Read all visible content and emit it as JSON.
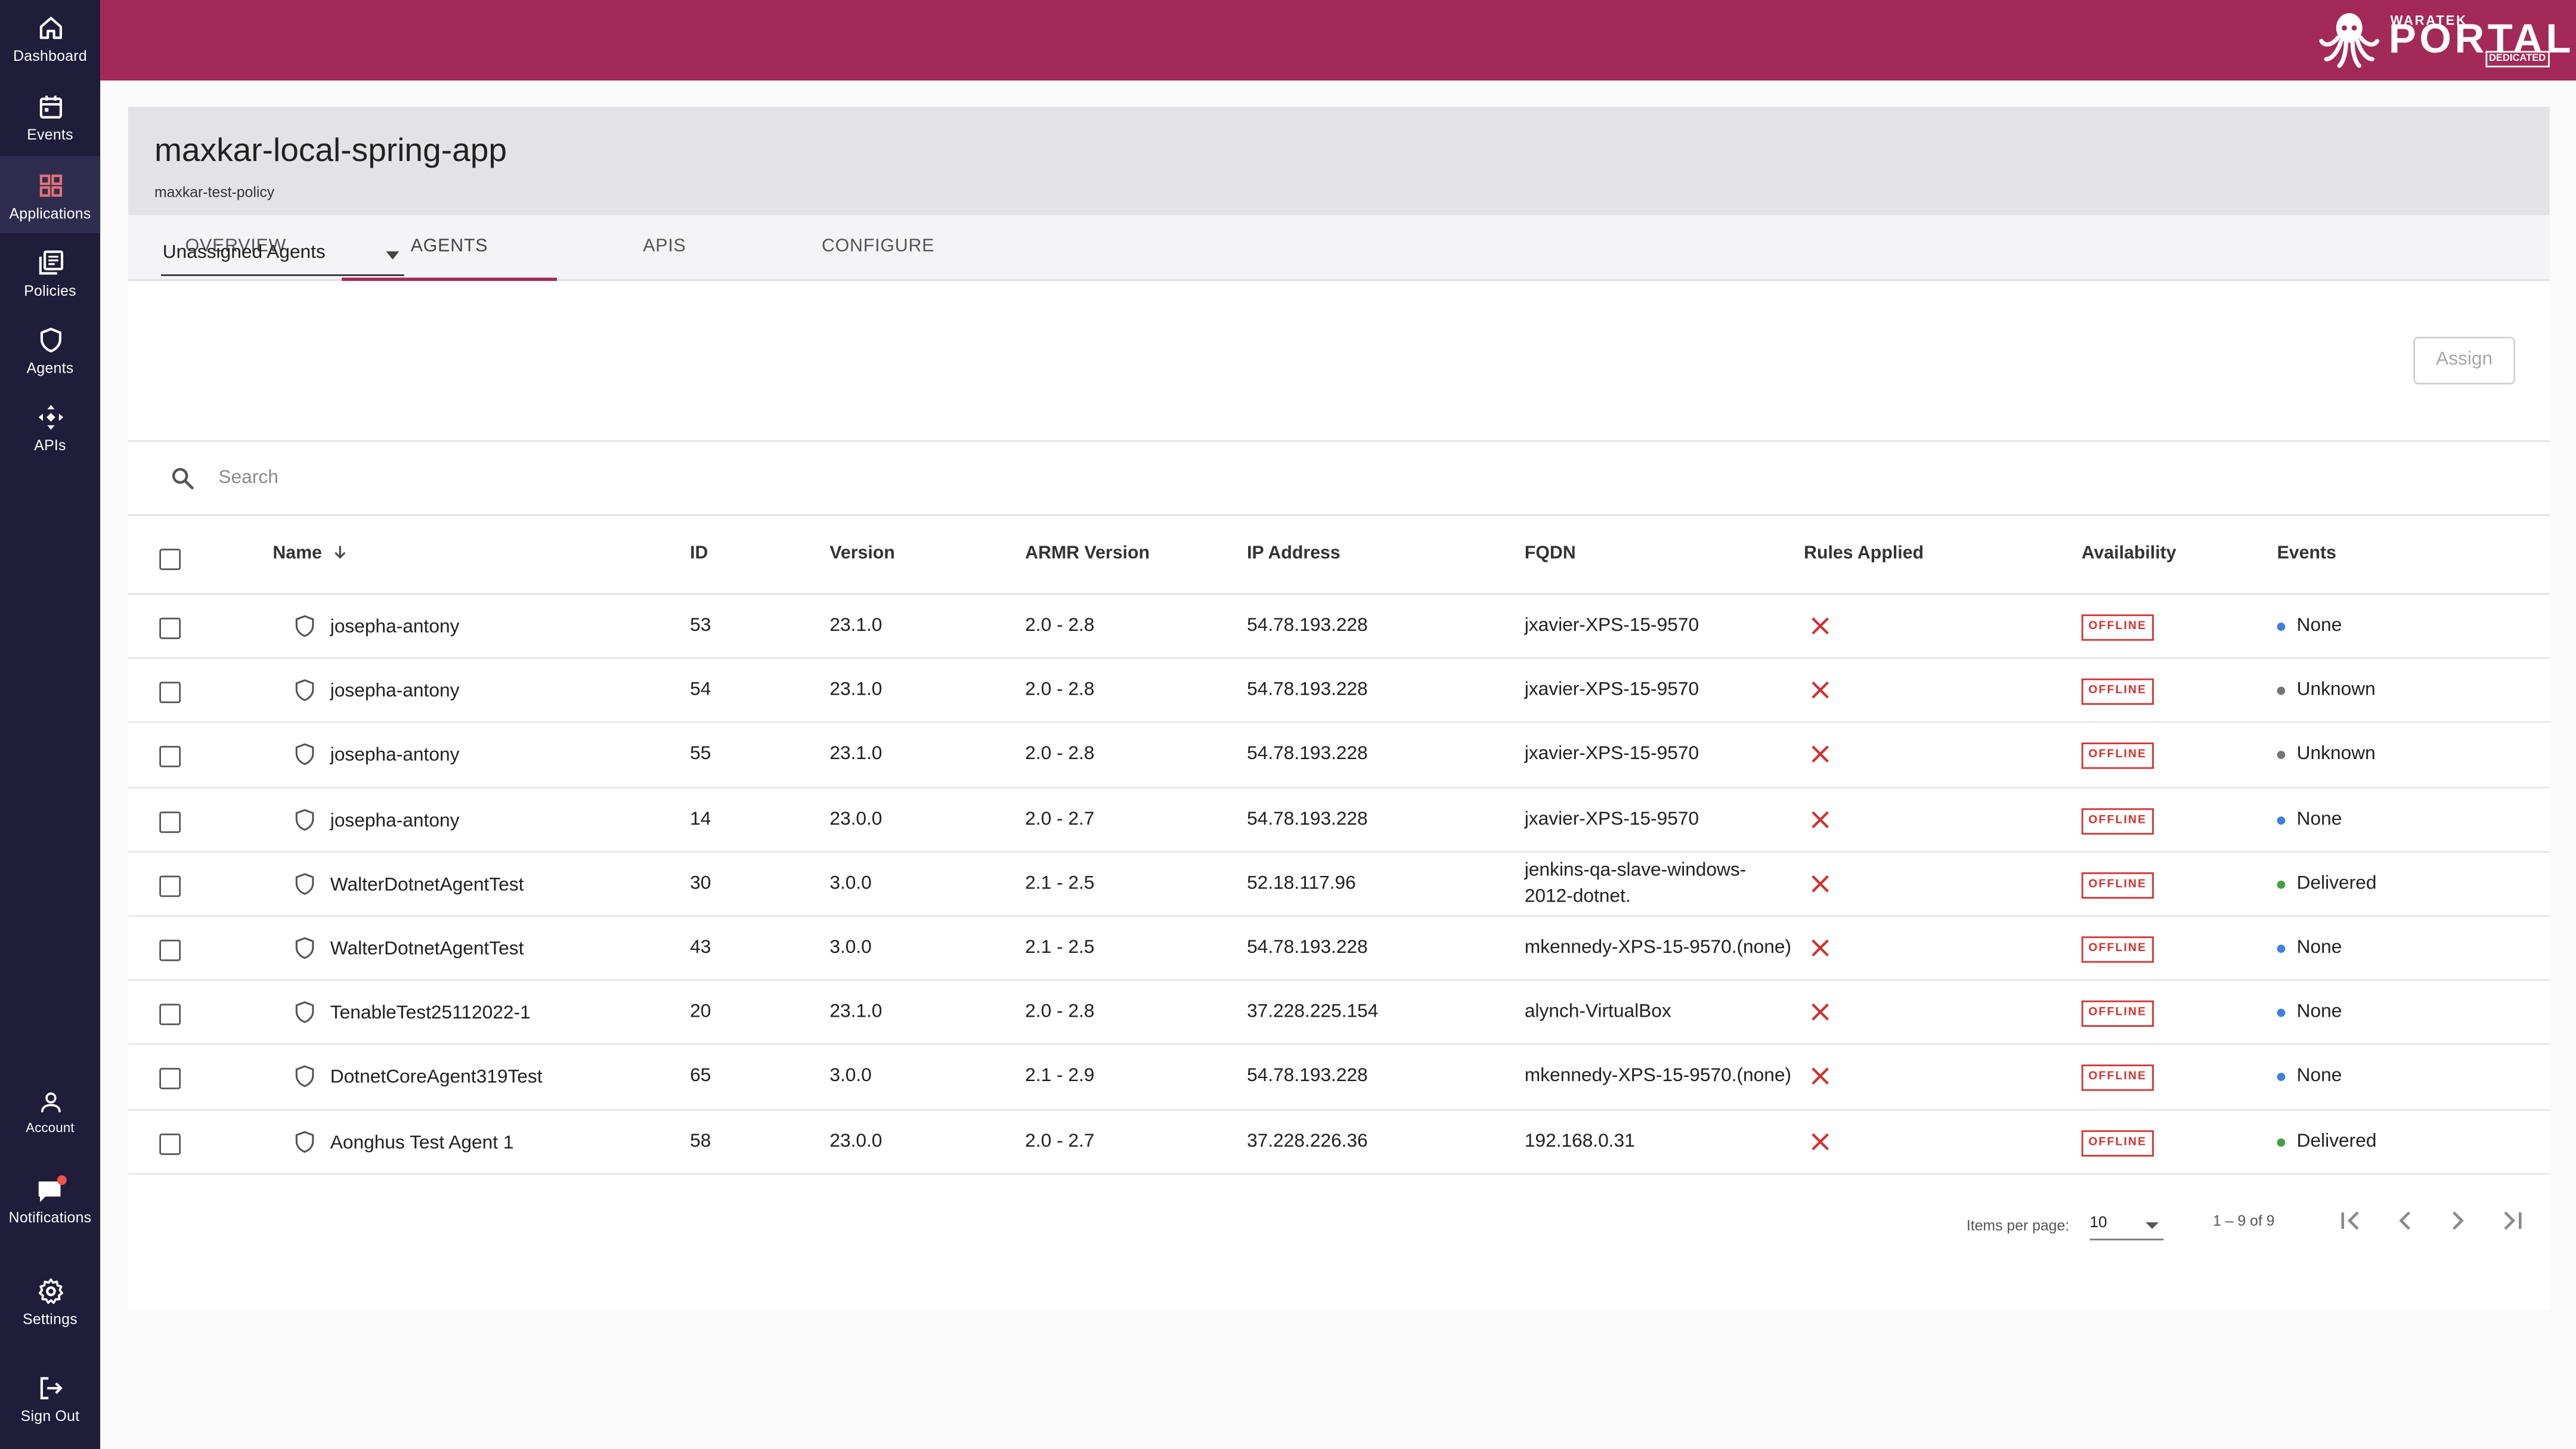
{
  "sidebar": {
    "top_items": [
      {
        "label": "Dashboard",
        "icon": "home-icon"
      },
      {
        "label": "Events",
        "icon": "calendar-icon"
      },
      {
        "label": "Applications",
        "icon": "grid-icon",
        "active": true
      },
      {
        "label": "Policies",
        "icon": "policies-icon"
      },
      {
        "label": "Agents",
        "icon": "shield-icon"
      },
      {
        "label": "APIs",
        "icon": "apis-icon"
      }
    ],
    "bottom_items": [
      {
        "label": "Account",
        "icon": "person-icon"
      },
      {
        "label": "Notifications",
        "icon": "chat-icon"
      },
      {
        "label": "Settings",
        "icon": "gear-icon"
      },
      {
        "label": "Sign Out",
        "icon": "sign-out-icon"
      }
    ]
  },
  "brand": {
    "small": "WARATEK",
    "big": "PORTAL",
    "badge": "DEDICATED",
    "icon": "octopus-logo-icon"
  },
  "colors": {
    "header": "#a32a58",
    "sidebar": "#1f1d3a",
    "offline": "#d32f2f",
    "dot_blue": "#3f7fe0",
    "dot_gray": "#757575",
    "dot_green": "#43a047",
    "applications_icon": "#e57373"
  },
  "page": {
    "title": "maxkar-local-spring-app",
    "subtitle": "maxkar-test-policy"
  },
  "tabs": [
    {
      "label": "OVERVIEW"
    },
    {
      "label": "AGENTS",
      "active": true
    },
    {
      "label": "APIS"
    },
    {
      "label": "CONFIGURE"
    }
  ],
  "filter": {
    "selected": "Unassigned Agents",
    "assign_label": "Assign"
  },
  "search": {
    "placeholder": "Search",
    "value": ""
  },
  "table": {
    "columns": {
      "name": "Name",
      "id": "ID",
      "version": "Version",
      "armr": "ARMR Version",
      "ip": "IP Address",
      "fqdn": "FQDN",
      "rules": "Rules Applied",
      "availability": "Availability",
      "events": "Events"
    },
    "sort": {
      "column": "Name",
      "direction": "descending",
      "icon": "arrow-down-icon"
    },
    "rows": [
      {
        "name": "josepha-antony",
        "id": "53",
        "version": "23.1.0",
        "armr": "2.0 - 2.8",
        "ip": "54.78.193.228",
        "fqdn": "jxavier-XPS-15-9570",
        "fqdn2": "",
        "availability": "OFFLINE",
        "events": "None",
        "dot": "blue"
      },
      {
        "name": "josepha-antony",
        "id": "54",
        "version": "23.1.0",
        "armr": "2.0 - 2.8",
        "ip": "54.78.193.228",
        "fqdn": "jxavier-XPS-15-9570",
        "fqdn2": "",
        "availability": "OFFLINE",
        "events": "Unknown",
        "dot": "gray"
      },
      {
        "name": "josepha-antony",
        "id": "55",
        "version": "23.1.0",
        "armr": "2.0 - 2.8",
        "ip": "54.78.193.228",
        "fqdn": "jxavier-XPS-15-9570",
        "fqdn2": "",
        "availability": "OFFLINE",
        "events": "Unknown",
        "dot": "gray"
      },
      {
        "name": "josepha-antony",
        "id": "14",
        "version": "23.0.0",
        "armr": "2.0 - 2.7",
        "ip": "54.78.193.228",
        "fqdn": "jxavier-XPS-15-9570",
        "fqdn2": "",
        "availability": "OFFLINE",
        "events": "None",
        "dot": "blue"
      },
      {
        "name": "WalterDotnetAgentTest",
        "id": "30",
        "version": "3.0.0",
        "armr": "2.1 - 2.5",
        "ip": "52.18.117.96",
        "fqdn": "jenkins-qa-slave-windows-",
        "fqdn2": "2012-dotnet.",
        "availability": "OFFLINE",
        "events": "Delivered",
        "dot": "green"
      },
      {
        "name": "WalterDotnetAgentTest",
        "id": "43",
        "version": "3.0.0",
        "armr": "2.1 - 2.5",
        "ip": "54.78.193.228",
        "fqdn": "mkennedy-XPS-15-9570.(none)",
        "fqdn2": "",
        "availability": "OFFLINE",
        "events": "None",
        "dot": "blue"
      },
      {
        "name": "TenableTest25112022-1",
        "id": "20",
        "version": "23.1.0",
        "armr": "2.0 - 2.8",
        "ip": "37.228.225.154",
        "fqdn": "alynch-VirtualBox",
        "fqdn2": "",
        "availability": "OFFLINE",
        "events": "None",
        "dot": "blue"
      },
      {
        "name": "DotnetCoreAgent319Test",
        "id": "65",
        "version": "3.0.0",
        "armr": "2.1 - 2.9",
        "ip": "54.78.193.228",
        "fqdn": "mkennedy-XPS-15-9570.(none)",
        "fqdn2": "",
        "availability": "OFFLINE",
        "events": "None",
        "dot": "blue"
      },
      {
        "name": "Aonghus Test Agent 1",
        "id": "58",
        "version": "23.0.0",
        "armr": "2.0 - 2.7",
        "ip": "37.228.226.36",
        "fqdn": "192.168.0.31",
        "fqdn2": "",
        "availability": "OFFLINE",
        "events": "Delivered",
        "dot": "green"
      }
    ]
  },
  "pagination": {
    "items_per_page_label": "Items per page:",
    "items_per_page": "10",
    "range": "1 – 9 of 9"
  }
}
